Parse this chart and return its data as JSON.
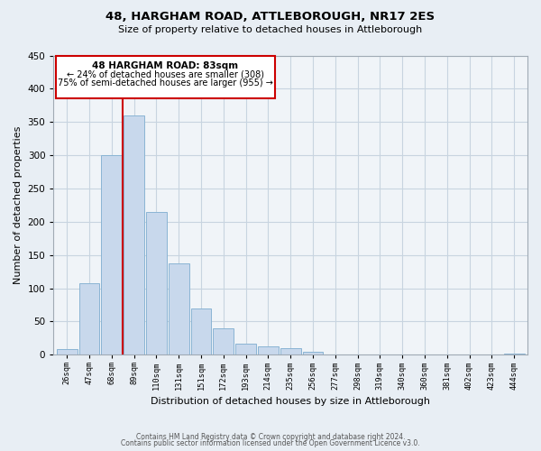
{
  "title": "48, HARGHAM ROAD, ATTLEBOROUGH, NR17 2ES",
  "subtitle": "Size of property relative to detached houses in Attleborough",
  "xlabel": "Distribution of detached houses by size in Attleborough",
  "ylabel": "Number of detached properties",
  "bar_labels": [
    "26sqm",
    "47sqm",
    "68sqm",
    "89sqm",
    "110sqm",
    "131sqm",
    "151sqm",
    "172sqm",
    "193sqm",
    "214sqm",
    "235sqm",
    "256sqm",
    "277sqm",
    "298sqm",
    "319sqm",
    "340sqm",
    "360sqm",
    "381sqm",
    "402sqm",
    "423sqm",
    "444sqm"
  ],
  "bar_values": [
    8,
    108,
    300,
    360,
    215,
    137,
    70,
    39,
    16,
    13,
    10,
    5,
    0,
    0,
    0,
    0,
    0,
    0,
    0,
    0,
    2
  ],
  "bar_color": "#c8d8ec",
  "bar_edge_color": "#8ab4d4",
  "ylim": [
    0,
    450
  ],
  "yticks": [
    0,
    50,
    100,
    150,
    200,
    250,
    300,
    350,
    400,
    450
  ],
  "annotation_title": "48 HARGHAM ROAD: 83sqm",
  "annotation_line1": "← 24% of detached houses are smaller (308)",
  "annotation_line2": "75% of semi-detached houses are larger (955) →",
  "vline_color": "#cc0000",
  "footer1": "Contains HM Land Registry data © Crown copyright and database right 2024.",
  "footer2": "Contains public sector information licensed under the Open Government Licence v3.0.",
  "bg_color": "#e8eef4",
  "plot_bg_color": "#f0f4f8",
  "grid_color": "#c8d4e0"
}
